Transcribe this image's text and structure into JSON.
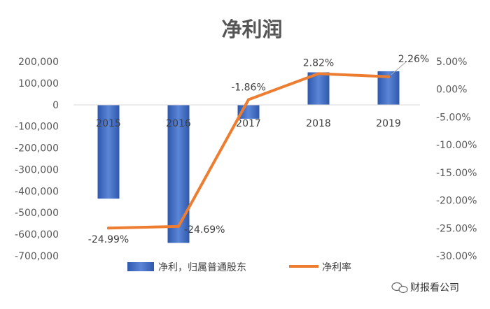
{
  "chart_data": {
    "type": "bar",
    "title": "净利润",
    "categories": [
      "2015",
      "2016",
      "2017",
      "2018",
      "2019"
    ],
    "series": [
      {
        "name": "净利，归属普通股东",
        "type": "bar",
        "axis": "left",
        "values": [
          -435000,
          -640000,
          -65000,
          150000,
          155000
        ],
        "color": "#4472C4"
      },
      {
        "name": "净利率",
        "type": "line",
        "axis": "right",
        "values": [
          -24.99,
          -24.69,
          -1.86,
          2.82,
          2.26
        ],
        "color": "#ED7D31",
        "labels": [
          "-24.99%",
          "-24.69%",
          "-1.86%",
          "2.82%",
          "2.26%"
        ]
      }
    ],
    "y_left": {
      "ylim": [
        -700000,
        200000
      ],
      "ticks": [
        "200,000",
        "100,000",
        "0",
        "-100,000",
        "-200,000",
        "-300,000",
        "-400,000",
        "-500,000",
        "-600,000",
        "-700,000"
      ]
    },
    "y_right": {
      "ylim": [
        -30,
        5
      ],
      "ticks": [
        "5.00%",
        "0.00%",
        "-5.00%",
        "-10.00%",
        "-15.00%",
        "-20.00%",
        "-25.00%",
        "-30.00%"
      ]
    },
    "legend_position": "bottom"
  },
  "watermark": "财报看公司"
}
